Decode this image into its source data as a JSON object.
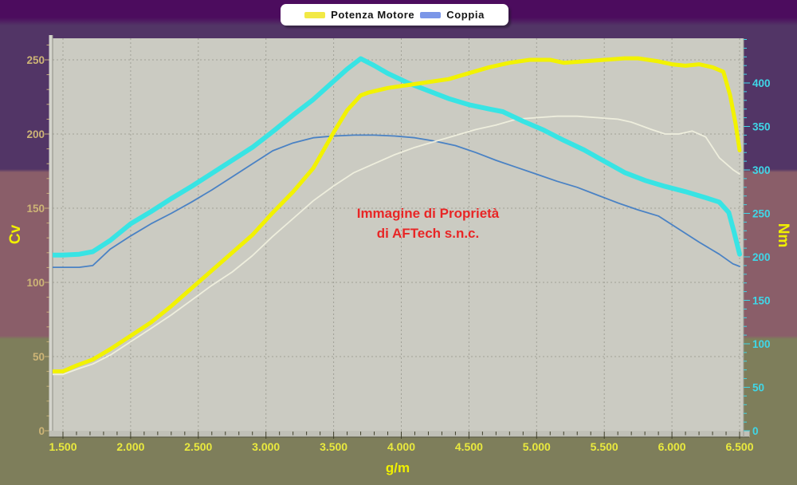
{
  "legend": {
    "items": [
      {
        "label": "Potenza Motore",
        "color": "#f2e945"
      },
      {
        "label": "Coppia",
        "color": "#7b96e8"
      }
    ]
  },
  "watermark": {
    "line1": "Immagine di Proprietà",
    "line2": "di AFTech s.n.c.",
    "color": "#e82626"
  },
  "colors": {
    "band_top_strip": "#4c0c5e",
    "band_upper_purple": "#523566",
    "band_mid_mauve": "#8a5e69",
    "band_lower_olive": "#7e7e5b",
    "plot_background": "#cbcbc2",
    "gridline": "#a0a096",
    "axis_title_yellow": "#f0f000",
    "x_tick_label_yellow": "#e9e93e"
  },
  "chart_data": {
    "type": "line",
    "x_axis": {
      "title": "g/m",
      "range": [
        1500,
        6500
      ],
      "major_tick_step": 500,
      "minor_tick_step": 100,
      "tick_labels": [
        "1.500",
        "2.000",
        "2.500",
        "3.000",
        "3.500",
        "4.000",
        "4.500",
        "5.000",
        "5.500",
        "6.000",
        "6.500"
      ]
    },
    "left_axis": {
      "title": "Cv",
      "range": [
        0,
        264
      ],
      "major_ticks": [
        0,
        50,
        100,
        150,
        200,
        250
      ],
      "minor_tick_step": 10,
      "label_color": "#cdb476"
    },
    "right_axis": {
      "title": "Nm",
      "range": [
        0,
        451
      ],
      "major_ticks": [
        0,
        50,
        100,
        150,
        200,
        250,
        300,
        350,
        400
      ],
      "minor_tick_step": 10,
      "label_color": "#3fd7e8"
    },
    "grid": {
      "vertical_every_rpm": 500,
      "horizontal_every_cv": 50,
      "style": "dashed"
    },
    "series": [
      {
        "id": "potenza-motore",
        "legend": "Potenza Motore",
        "axis": "left",
        "unit": "Cv",
        "color": "#f2f200",
        "width": 5,
        "points": [
          [
            1500,
            40
          ],
          [
            1600,
            44
          ],
          [
            1720,
            48
          ],
          [
            1850,
            55
          ],
          [
            2000,
            64
          ],
          [
            2150,
            73
          ],
          [
            2300,
            84
          ],
          [
            2450,
            96
          ],
          [
            2600,
            108
          ],
          [
            2750,
            120
          ],
          [
            2900,
            132
          ],
          [
            3050,
            147
          ],
          [
            3200,
            161
          ],
          [
            3350,
            177
          ],
          [
            3500,
            201
          ],
          [
            3600,
            216
          ],
          [
            3700,
            226
          ],
          [
            3760,
            228
          ],
          [
            3900,
            231
          ],
          [
            4050,
            233
          ],
          [
            4200,
            235
          ],
          [
            4350,
            237
          ],
          [
            4500,
            241
          ],
          [
            4650,
            245
          ],
          [
            4800,
            248
          ],
          [
            4950,
            250
          ],
          [
            5100,
            250
          ],
          [
            5200,
            248
          ],
          [
            5350,
            249
          ],
          [
            5500,
            250
          ],
          [
            5650,
            251
          ],
          [
            5750,
            251
          ],
          [
            5900,
            249
          ],
          [
            6000,
            247
          ],
          [
            6100,
            246
          ],
          [
            6200,
            247
          ],
          [
            6300,
            245
          ],
          [
            6380,
            242
          ],
          [
            6430,
            226
          ],
          [
            6470,
            207
          ],
          [
            6500,
            189
          ]
        ]
      },
      {
        "id": "coppia",
        "legend": "Coppia",
        "axis": "right",
        "unit": "Nm",
        "color": "#38e4e4",
        "width": 6,
        "points": [
          [
            1500,
            202
          ],
          [
            1620,
            203
          ],
          [
            1720,
            206
          ],
          [
            1850,
            219
          ],
          [
            2000,
            238
          ],
          [
            2150,
            252
          ],
          [
            2300,
            267
          ],
          [
            2450,
            281
          ],
          [
            2600,
            296
          ],
          [
            2750,
            311
          ],
          [
            2900,
            326
          ],
          [
            3050,
            344
          ],
          [
            3200,
            363
          ],
          [
            3350,
            381
          ],
          [
            3500,
            402
          ],
          [
            3600,
            416
          ],
          [
            3700,
            428
          ],
          [
            3800,
            420
          ],
          [
            3900,
            411
          ],
          [
            4050,
            400
          ],
          [
            4200,
            391
          ],
          [
            4350,
            382
          ],
          [
            4500,
            375
          ],
          [
            4650,
            370
          ],
          [
            4750,
            367
          ],
          [
            4900,
            356
          ],
          [
            5050,
            346
          ],
          [
            5200,
            334
          ],
          [
            5350,
            323
          ],
          [
            5500,
            310
          ],
          [
            5650,
            297
          ],
          [
            5800,
            288
          ],
          [
            5950,
            281
          ],
          [
            6100,
            275
          ],
          [
            6250,
            268
          ],
          [
            6350,
            263
          ],
          [
            6420,
            251
          ],
          [
            6460,
            228
          ],
          [
            6500,
            203
          ]
        ]
      },
      {
        "id": "thin-white-line",
        "axis": "left",
        "unit": "Cv",
        "color": "#eeeedd",
        "width": 1.8,
        "points": [
          [
            1500,
            38
          ],
          [
            1620,
            42
          ],
          [
            1720,
            45
          ],
          [
            1850,
            51
          ],
          [
            2000,
            60
          ],
          [
            2150,
            69
          ],
          [
            2300,
            78
          ],
          [
            2450,
            88
          ],
          [
            2600,
            98
          ],
          [
            2750,
            107
          ],
          [
            2900,
            118
          ],
          [
            3050,
            131
          ],
          [
            3200,
            143
          ],
          [
            3350,
            155
          ],
          [
            3500,
            165
          ],
          [
            3650,
            174
          ],
          [
            3800,
            180
          ],
          [
            3950,
            186
          ],
          [
            4100,
            191
          ],
          [
            4250,
            195
          ],
          [
            4400,
            199
          ],
          [
            4550,
            203
          ],
          [
            4700,
            206
          ],
          [
            4850,
            210
          ],
          [
            5000,
            211
          ],
          [
            5150,
            212
          ],
          [
            5300,
            212
          ],
          [
            5450,
            211
          ],
          [
            5600,
            210
          ],
          [
            5700,
            208
          ],
          [
            5850,
            203
          ],
          [
            5950,
            200
          ],
          [
            6050,
            200
          ],
          [
            6150,
            202
          ],
          [
            6250,
            198
          ],
          [
            6350,
            184
          ],
          [
            6450,
            176
          ],
          [
            6500,
            173
          ]
        ]
      },
      {
        "id": "thin-blue-line",
        "axis": "right",
        "unit": "Nm",
        "color": "#4a82c4",
        "width": 1.8,
        "points": [
          [
            1500,
            188
          ],
          [
            1620,
            188
          ],
          [
            1720,
            190
          ],
          [
            1850,
            209
          ],
          [
            2000,
            224
          ],
          [
            2150,
            238
          ],
          [
            2300,
            250
          ],
          [
            2450,
            263
          ],
          [
            2600,
            277
          ],
          [
            2750,
            292
          ],
          [
            2900,
            307
          ],
          [
            3050,
            322
          ],
          [
            3200,
            331
          ],
          [
            3350,
            337
          ],
          [
            3500,
            339
          ],
          [
            3650,
            340
          ],
          [
            3800,
            340
          ],
          [
            3950,
            339
          ],
          [
            4100,
            337
          ],
          [
            4250,
            333
          ],
          [
            4400,
            328
          ],
          [
            4550,
            320
          ],
          [
            4700,
            311
          ],
          [
            4850,
            303
          ],
          [
            5000,
            295
          ],
          [
            5150,
            287
          ],
          [
            5300,
            280
          ],
          [
            5450,
            271
          ],
          [
            5600,
            262
          ],
          [
            5750,
            254
          ],
          [
            5900,
            247
          ],
          [
            6050,
            232
          ],
          [
            6200,
            217
          ],
          [
            6350,
            203
          ],
          [
            6450,
            192
          ],
          [
            6500,
            189
          ]
        ]
      }
    ]
  }
}
